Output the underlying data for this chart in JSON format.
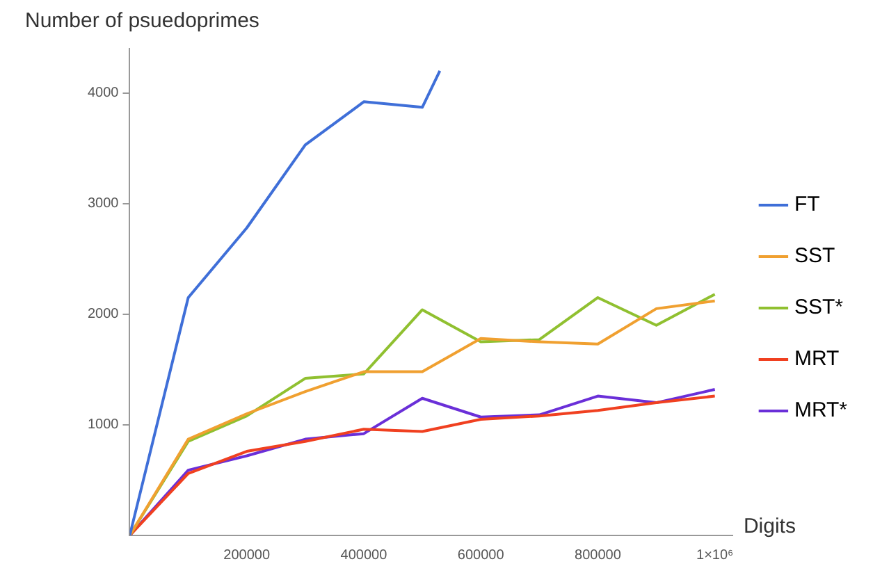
{
  "chart_data": {
    "type": "line",
    "ylabel": "Number of psuedoprimes",
    "xlabel": "Digits",
    "x": [
      0,
      100000,
      200000,
      300000,
      400000,
      500000,
      600000,
      700000,
      800000,
      900000,
      1000000
    ],
    "series": [
      {
        "name": "FT",
        "color": "#3f6fd8",
        "x": [
          0,
          100000,
          200000,
          300000,
          400000,
          500000,
          530000
        ],
        "values": [
          0,
          2150,
          2780,
          3530,
          3920,
          3870,
          4200
        ]
      },
      {
        "name": "SST",
        "color": "#f0a030",
        "values": [
          0,
          870,
          1100,
          1300,
          1480,
          1480,
          1780,
          1750,
          1730,
          2050,
          2120
        ]
      },
      {
        "name": "SST*",
        "color": "#90c030",
        "values": [
          0,
          850,
          1080,
          1420,
          1460,
          2040,
          1750,
          1770,
          2150,
          1900,
          2180
        ]
      },
      {
        "name": "MRT",
        "color": "#f04020",
        "values": [
          0,
          560,
          760,
          850,
          960,
          940,
          1050,
          1080,
          1130,
          1200,
          1260
        ]
      },
      {
        "name": "MRT*",
        "color": "#6a2fd8",
        "values": [
          0,
          590,
          720,
          870,
          920,
          1240,
          1070,
          1090,
          1260,
          1200,
          1320
        ]
      }
    ],
    "xlim": [
      0,
      1030000
    ],
    "ylim": [
      0,
      4400
    ],
    "xticks": [
      200000,
      400000,
      600000,
      800000,
      {
        "value": 1000000,
        "label": "1×10⁶"
      }
    ],
    "yticks": [
      1000,
      2000,
      3000,
      4000
    ],
    "grid": false,
    "legend": "right",
    "marker": "none",
    "line_style": "solid"
  }
}
